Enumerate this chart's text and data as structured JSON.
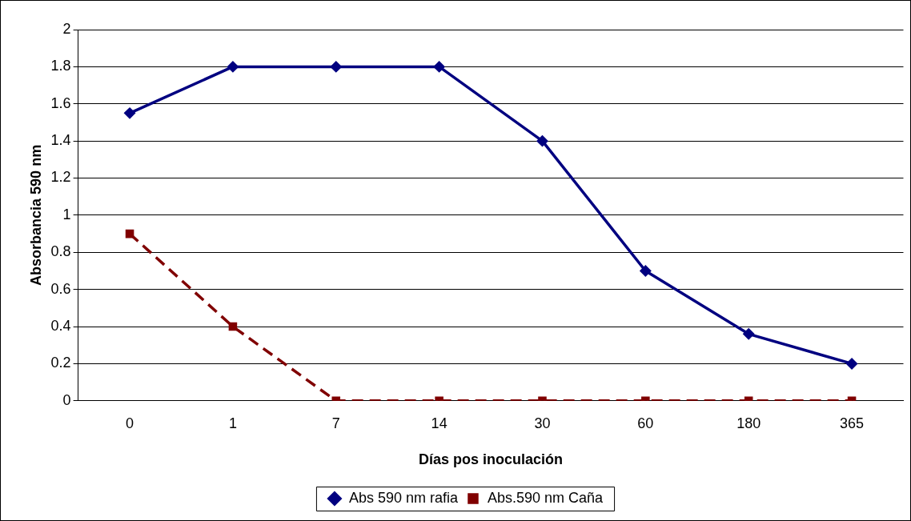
{
  "chart_data": {
    "type": "line",
    "xlabel": "Días pos inoculación",
    "ylabel": "Absorbancia 590 nm",
    "categories": [
      "0",
      "1",
      "7",
      "14",
      "30",
      "60",
      "180",
      "365"
    ],
    "ylim": [
      0,
      2
    ],
    "yticks": [
      0,
      0.2,
      0.4,
      0.6,
      0.8,
      1,
      1.2,
      1.4,
      1.6,
      1.8,
      2
    ],
    "grid": "y",
    "legend": "bottom",
    "series": [
      {
        "name": "Abs 590 nm rafia",
        "color": "#000080",
        "marker": "diamond",
        "line_style": "solid",
        "values": [
          1.55,
          1.8,
          1.8,
          1.8,
          1.4,
          0.7,
          0.36,
          0.2
        ]
      },
      {
        "name": "Abs.590 nm Caña",
        "color": "#800000",
        "marker": "square",
        "line_style": "dashed",
        "values": [
          0.9,
          0.4,
          0,
          0,
          0,
          0,
          0,
          0
        ]
      }
    ]
  }
}
